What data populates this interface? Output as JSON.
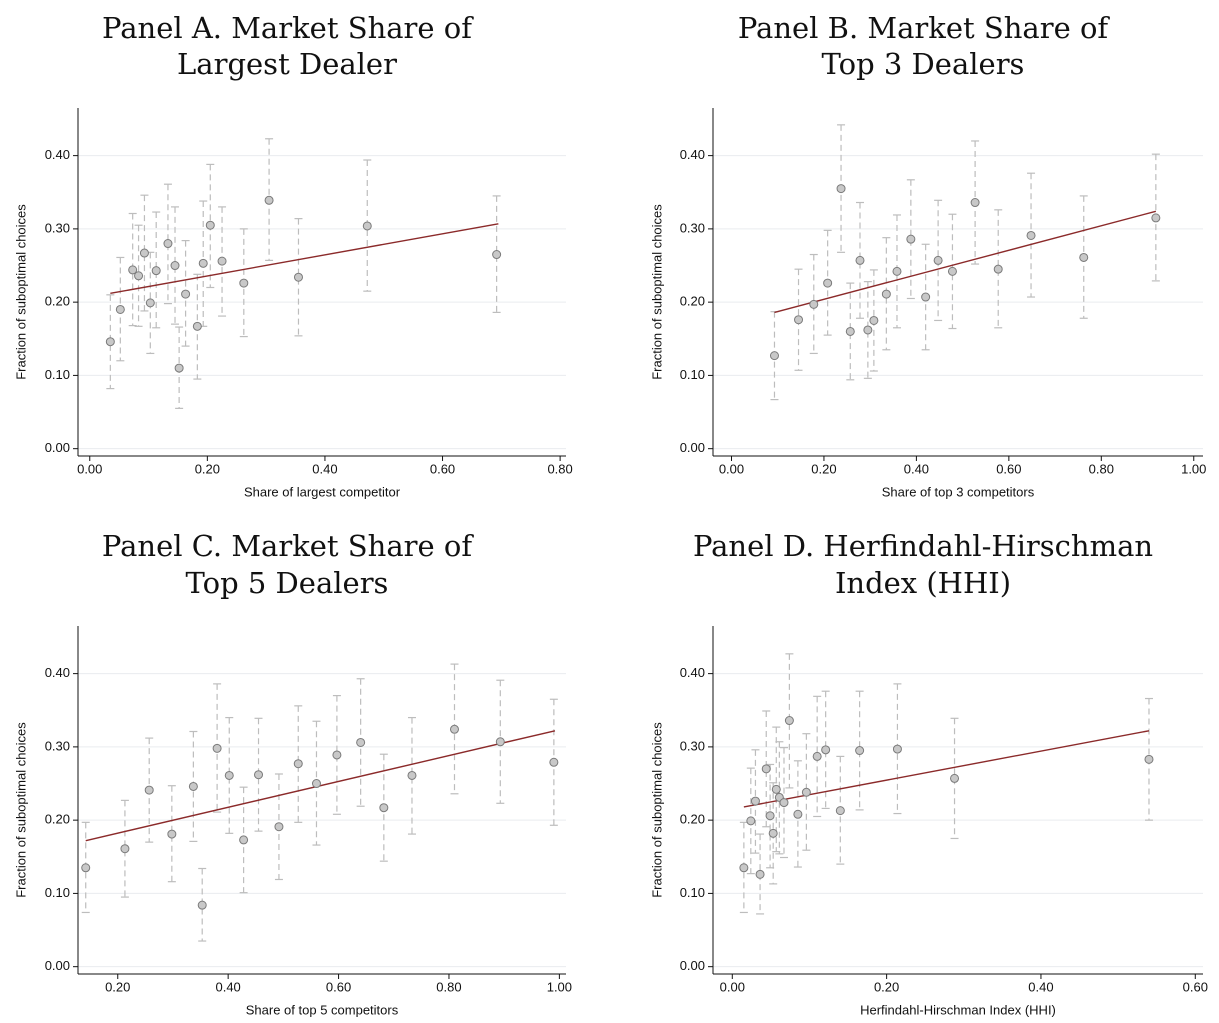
{
  "chart_data": [
    {
      "type": "scatter",
      "title_lines": [
        "Panel A. Market Share of",
        "Largest Dealer"
      ],
      "xlabel": "Share of largest competitor",
      "ylabel": "Fraction of suboptimal choices",
      "xlim": [
        -0.02,
        0.81
      ],
      "ylim": [
        -0.01,
        0.465
      ],
      "xticks": [
        0.0,
        0.2,
        0.4,
        0.6,
        0.8
      ],
      "xtick_labels": [
        "0.00",
        "0.20",
        "0.40",
        "0.60",
        "0.80"
      ],
      "yticks": [
        0.0,
        0.1,
        0.2,
        0.3,
        0.4
      ],
      "ytick_labels": [
        "0.00",
        "0.10",
        "0.20",
        "0.30",
        "0.40"
      ],
      "grid": "horizontal",
      "fit": [
        [
          0.035,
          0.212
        ],
        [
          0.695,
          0.307
        ]
      ],
      "points": [
        {
          "x": 0.035,
          "y": 0.146,
          "lo": 0.082,
          "hi": 0.21
        },
        {
          "x": 0.052,
          "y": 0.19,
          "lo": 0.12,
          "hi": 0.261
        },
        {
          "x": 0.073,
          "y": 0.244,
          "lo": 0.168,
          "hi": 0.321
        },
        {
          "x": 0.083,
          "y": 0.236,
          "lo": 0.167,
          "hi": 0.305
        },
        {
          "x": 0.093,
          "y": 0.267,
          "lo": 0.188,
          "hi": 0.346
        },
        {
          "x": 0.103,
          "y": 0.199,
          "lo": 0.13,
          "hi": 0.268
        },
        {
          "x": 0.113,
          "y": 0.243,
          "lo": 0.165,
          "hi": 0.323
        },
        {
          "x": 0.133,
          "y": 0.28,
          "lo": 0.198,
          "hi": 0.361
        },
        {
          "x": 0.145,
          "y": 0.25,
          "lo": 0.17,
          "hi": 0.33
        },
        {
          "x": 0.152,
          "y": 0.11,
          "lo": 0.055,
          "hi": 0.166
        },
        {
          "x": 0.163,
          "y": 0.211,
          "lo": 0.14,
          "hi": 0.284
        },
        {
          "x": 0.183,
          "y": 0.167,
          "lo": 0.095,
          "hi": 0.238
        },
        {
          "x": 0.193,
          "y": 0.253,
          "lo": 0.167,
          "hi": 0.338
        },
        {
          "x": 0.205,
          "y": 0.305,
          "lo": 0.22,
          "hi": 0.388
        },
        {
          "x": 0.225,
          "y": 0.256,
          "lo": 0.181,
          "hi": 0.33
        },
        {
          "x": 0.262,
          "y": 0.226,
          "lo": 0.153,
          "hi": 0.3
        },
        {
          "x": 0.305,
          "y": 0.339,
          "lo": 0.257,
          "hi": 0.423
        },
        {
          "x": 0.355,
          "y": 0.234,
          "lo": 0.154,
          "hi": 0.314
        },
        {
          "x": 0.472,
          "y": 0.304,
          "lo": 0.215,
          "hi": 0.394
        },
        {
          "x": 0.692,
          "y": 0.265,
          "lo": 0.186,
          "hi": 0.345
        }
      ]
    },
    {
      "type": "scatter",
      "title_lines": [
        "Panel B. Market Share of",
        "Top 3 Dealers"
      ],
      "xlabel": "Share of top 3 competitors",
      "ylabel": "Fraction of suboptimal choices",
      "xlim": [
        -0.04,
        1.02
      ],
      "ylim": [
        -0.01,
        0.465
      ],
      "xticks": [
        0.0,
        0.2,
        0.4,
        0.6,
        0.8,
        1.0
      ],
      "xtick_labels": [
        "0.00",
        "0.20",
        "0.40",
        "0.60",
        "0.80",
        "1.00"
      ],
      "yticks": [
        0.0,
        0.1,
        0.2,
        0.3,
        0.4
      ],
      "ytick_labels": [
        "0.00",
        "0.10",
        "0.20",
        "0.30",
        "0.40"
      ],
      "grid": "horizontal",
      "fit": [
        [
          0.093,
          0.186
        ],
        [
          0.918,
          0.324
        ]
      ],
      "points": [
        {
          "x": 0.093,
          "y": 0.127,
          "lo": 0.067,
          "hi": 0.187
        },
        {
          "x": 0.145,
          "y": 0.176,
          "lo": 0.107,
          "hi": 0.245
        },
        {
          "x": 0.178,
          "y": 0.197,
          "lo": 0.13,
          "hi": 0.265
        },
        {
          "x": 0.208,
          "y": 0.226,
          "lo": 0.155,
          "hi": 0.298
        },
        {
          "x": 0.237,
          "y": 0.355,
          "lo": 0.268,
          "hi": 0.442
        },
        {
          "x": 0.257,
          "y": 0.16,
          "lo": 0.094,
          "hi": 0.226
        },
        {
          "x": 0.278,
          "y": 0.257,
          "lo": 0.178,
          "hi": 0.336
        },
        {
          "x": 0.295,
          "y": 0.162,
          "lo": 0.096,
          "hi": 0.228
        },
        {
          "x": 0.308,
          "y": 0.175,
          "lo": 0.106,
          "hi": 0.244
        },
        {
          "x": 0.335,
          "y": 0.211,
          "lo": 0.135,
          "hi": 0.288
        },
        {
          "x": 0.358,
          "y": 0.242,
          "lo": 0.165,
          "hi": 0.319
        },
        {
          "x": 0.388,
          "y": 0.286,
          "lo": 0.205,
          "hi": 0.367
        },
        {
          "x": 0.42,
          "y": 0.207,
          "lo": 0.135,
          "hi": 0.279
        },
        {
          "x": 0.447,
          "y": 0.257,
          "lo": 0.175,
          "hi": 0.339
        },
        {
          "x": 0.478,
          "y": 0.242,
          "lo": 0.164,
          "hi": 0.32
        },
        {
          "x": 0.527,
          "y": 0.336,
          "lo": 0.252,
          "hi": 0.42
        },
        {
          "x": 0.577,
          "y": 0.245,
          "lo": 0.165,
          "hi": 0.326
        },
        {
          "x": 0.648,
          "y": 0.291,
          "lo": 0.207,
          "hi": 0.376
        },
        {
          "x": 0.762,
          "y": 0.261,
          "lo": 0.178,
          "hi": 0.345
        },
        {
          "x": 0.918,
          "y": 0.315,
          "lo": 0.229,
          "hi": 0.402
        }
      ]
    },
    {
      "type": "scatter",
      "title_lines": [
        "Panel C. Market Share of",
        "Top 5 Dealers"
      ],
      "xlabel": "Share of top 5 competitors",
      "ylabel": "Fraction of suboptimal choices",
      "xlim": [
        0.128,
        1.012
      ],
      "ylim": [
        -0.01,
        0.465
      ],
      "xticks": [
        0.2,
        0.4,
        0.6,
        0.8,
        1.0
      ],
      "xtick_labels": [
        "0.20",
        "0.40",
        "0.60",
        "0.80",
        "1.00"
      ],
      "yticks": [
        0.0,
        0.1,
        0.2,
        0.3,
        0.4
      ],
      "ytick_labels": [
        "0.00",
        "0.10",
        "0.20",
        "0.30",
        "0.40"
      ],
      "grid": "horizontal",
      "fit": [
        [
          0.142,
          0.172
        ],
        [
          0.992,
          0.322
        ]
      ],
      "points": [
        {
          "x": 0.142,
          "y": 0.135,
          "lo": 0.074,
          "hi": 0.197
        },
        {
          "x": 0.213,
          "y": 0.161,
          "lo": 0.095,
          "hi": 0.227
        },
        {
          "x": 0.257,
          "y": 0.241,
          "lo": 0.17,
          "hi": 0.312
        },
        {
          "x": 0.298,
          "y": 0.181,
          "lo": 0.116,
          "hi": 0.247
        },
        {
          "x": 0.337,
          "y": 0.246,
          "lo": 0.171,
          "hi": 0.321
        },
        {
          "x": 0.353,
          "y": 0.084,
          "lo": 0.035,
          "hi": 0.134
        },
        {
          "x": 0.38,
          "y": 0.298,
          "lo": 0.211,
          "hi": 0.386
        },
        {
          "x": 0.402,
          "y": 0.261,
          "lo": 0.182,
          "hi": 0.34
        },
        {
          "x": 0.428,
          "y": 0.173,
          "lo": 0.101,
          "hi": 0.245
        },
        {
          "x": 0.455,
          "y": 0.262,
          "lo": 0.185,
          "hi": 0.339
        },
        {
          "x": 0.492,
          "y": 0.191,
          "lo": 0.119,
          "hi": 0.263
        },
        {
          "x": 0.527,
          "y": 0.277,
          "lo": 0.197,
          "hi": 0.356
        },
        {
          "x": 0.56,
          "y": 0.25,
          "lo": 0.166,
          "hi": 0.335
        },
        {
          "x": 0.597,
          "y": 0.289,
          "lo": 0.208,
          "hi": 0.37
        },
        {
          "x": 0.64,
          "y": 0.306,
          "lo": 0.219,
          "hi": 0.393
        },
        {
          "x": 0.682,
          "y": 0.217,
          "lo": 0.144,
          "hi": 0.29
        },
        {
          "x": 0.733,
          "y": 0.261,
          "lo": 0.181,
          "hi": 0.34
        },
        {
          "x": 0.81,
          "y": 0.324,
          "lo": 0.236,
          "hi": 0.413
        },
        {
          "x": 0.893,
          "y": 0.307,
          "lo": 0.223,
          "hi": 0.391
        },
        {
          "x": 0.99,
          "y": 0.279,
          "lo": 0.193,
          "hi": 0.365
        }
      ]
    },
    {
      "type": "scatter",
      "title_lines": [
        "Panel D. Herfindahl-Hirschman",
        "Index (HHI)"
      ],
      "xlabel": "Herfindahl-Hirschman Index (HHI)",
      "ylabel": "Fraction of suboptimal choices",
      "xlim": [
        -0.025,
        0.61
      ],
      "ylim": [
        -0.01,
        0.465
      ],
      "xticks": [
        0.0,
        0.2,
        0.4,
        0.6
      ],
      "xtick_labels": [
        "0.00",
        "0.20",
        "0.40",
        "0.60"
      ],
      "yticks": [
        0.0,
        0.1,
        0.2,
        0.3,
        0.4
      ],
      "ytick_labels": [
        "0.00",
        "0.10",
        "0.20",
        "0.30",
        "0.40"
      ],
      "grid": "horizontal",
      "fit": [
        [
          0.015,
          0.218
        ],
        [
          0.54,
          0.322
        ]
      ],
      "points": [
        {
          "x": 0.015,
          "y": 0.135,
          "lo": 0.074,
          "hi": 0.197
        },
        {
          "x": 0.024,
          "y": 0.199,
          "lo": 0.127,
          "hi": 0.271
        },
        {
          "x": 0.03,
          "y": 0.226,
          "lo": 0.155,
          "hi": 0.296
        },
        {
          "x": 0.036,
          "y": 0.126,
          "lo": 0.072,
          "hi": 0.181
        },
        {
          "x": 0.044,
          "y": 0.27,
          "lo": 0.191,
          "hi": 0.349
        },
        {
          "x": 0.049,
          "y": 0.206,
          "lo": 0.135,
          "hi": 0.276
        },
        {
          "x": 0.053,
          "y": 0.182,
          "lo": 0.113,
          "hi": 0.251
        },
        {
          "x": 0.057,
          "y": 0.242,
          "lo": 0.157,
          "hi": 0.327
        },
        {
          "x": 0.061,
          "y": 0.231,
          "lo": 0.154,
          "hi": 0.307
        },
        {
          "x": 0.067,
          "y": 0.224,
          "lo": 0.149,
          "hi": 0.299
        },
        {
          "x": 0.074,
          "y": 0.336,
          "lo": 0.244,
          "hi": 0.427
        },
        {
          "x": 0.085,
          "y": 0.208,
          "lo": 0.136,
          "hi": 0.281
        },
        {
          "x": 0.096,
          "y": 0.238,
          "lo": 0.159,
          "hi": 0.318
        },
        {
          "x": 0.11,
          "y": 0.287,
          "lo": 0.205,
          "hi": 0.369
        },
        {
          "x": 0.121,
          "y": 0.296,
          "lo": 0.216,
          "hi": 0.376
        },
        {
          "x": 0.14,
          "y": 0.213,
          "lo": 0.14,
          "hi": 0.287
        },
        {
          "x": 0.165,
          "y": 0.295,
          "lo": 0.214,
          "hi": 0.376
        },
        {
          "x": 0.214,
          "y": 0.297,
          "lo": 0.209,
          "hi": 0.386
        },
        {
          "x": 0.288,
          "y": 0.257,
          "lo": 0.175,
          "hi": 0.339
        },
        {
          "x": 0.54,
          "y": 0.283,
          "lo": 0.2,
          "hi": 0.366
        }
      ]
    }
  ],
  "colors": {
    "fit_line": "#8b2a2a",
    "marker_fill": "#c8c8c8",
    "marker_stroke": "#7a7a7a",
    "error_bar": "#bdbdbd",
    "grid": "#e9ecef"
  }
}
